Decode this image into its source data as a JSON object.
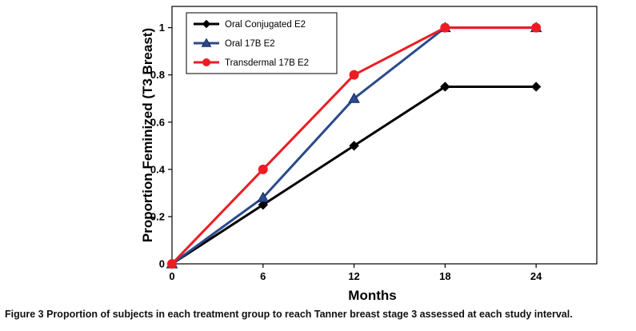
{
  "chart_data": {
    "type": "line",
    "x": [
      0,
      6,
      12,
      18,
      24
    ],
    "series": [
      {
        "name": "Oral Conjugated E2",
        "color": "#000000",
        "marker": "diamond",
        "values": [
          0,
          0.25,
          0.5,
          0.75,
          0.75
        ]
      },
      {
        "name": "Oral 17B E2",
        "color": "#2A4A8C",
        "marker": "triangle",
        "values": [
          0,
          0.28,
          0.7,
          1,
          1
        ]
      },
      {
        "name": "Transdermal 17B E2",
        "color": "#ED1C24",
        "marker": "circle",
        "values": [
          0,
          0.4,
          0.8,
          1,
          1
        ]
      }
    ],
    "title": "",
    "xlabel": "Months",
    "ylabel": "Proportion Feminized (T3 Breast)",
    "x_ticks": [
      "0",
      "6",
      "12",
      "18",
      "24"
    ],
    "x_tick_values": [
      0,
      6,
      12,
      18,
      24
    ],
    "y_ticks": [
      "0",
      "0.2",
      "0.4",
      "0.6",
      "0.8",
      "1"
    ],
    "y_tick_values": [
      0,
      0.2,
      0.4,
      0.6,
      0.8,
      1
    ],
    "xlim": [
      0,
      28
    ],
    "ylim": [
      0,
      1.09
    ],
    "grid": false,
    "legend_position": "top-left"
  },
  "caption": {
    "label": "Figure 3",
    "text": "Proportion of subjects in each treatment group to reach Tanner breast stage 3 assessed at each study interval."
  }
}
